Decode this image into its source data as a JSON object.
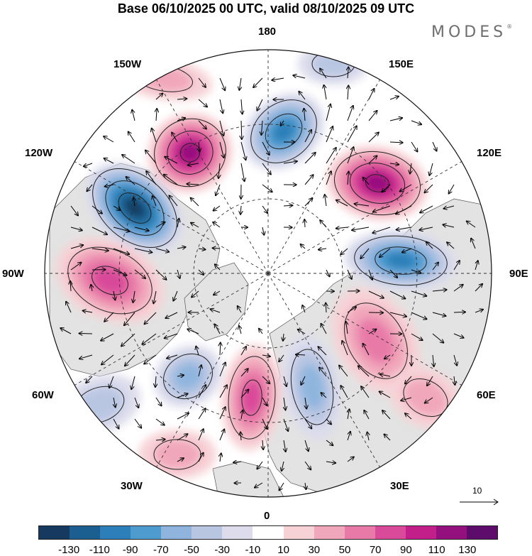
{
  "title": "Base 06/10/2025 00 UTC, valid 08/10/2025 09 UTC",
  "brand": "MODES",
  "brand_mark": "®",
  "longitude_labels": {
    "top": "180",
    "bottom": "0",
    "left": "90W",
    "right": "90E",
    "upper_left_30": "150W",
    "upper_left_60": "120W",
    "lower_left_60": "60W",
    "lower_left_30": "30W",
    "upper_right_30": "150E",
    "upper_right_60": "120E",
    "lower_right_60": "60E",
    "lower_right_30": "30E"
  },
  "reference_vector": "10",
  "colorbar": {
    "colors": [
      "#163a5f",
      "#1a5f8f",
      "#2c7fb8",
      "#4e9bd0",
      "#8fb5de",
      "#b9c6e2",
      "#dcdcec",
      "#ffffff",
      "#f6d1d5",
      "#f1a7bb",
      "#e87aa8",
      "#d94a9a",
      "#c21f8a",
      "#93107e",
      "#5e0c6b"
    ],
    "tick_labels": [
      "-130",
      "-110",
      "-90",
      "-70",
      "-50",
      "-30",
      "-10",
      "10",
      "30",
      "50",
      "70",
      "90",
      "110",
      "130"
    ]
  }
}
